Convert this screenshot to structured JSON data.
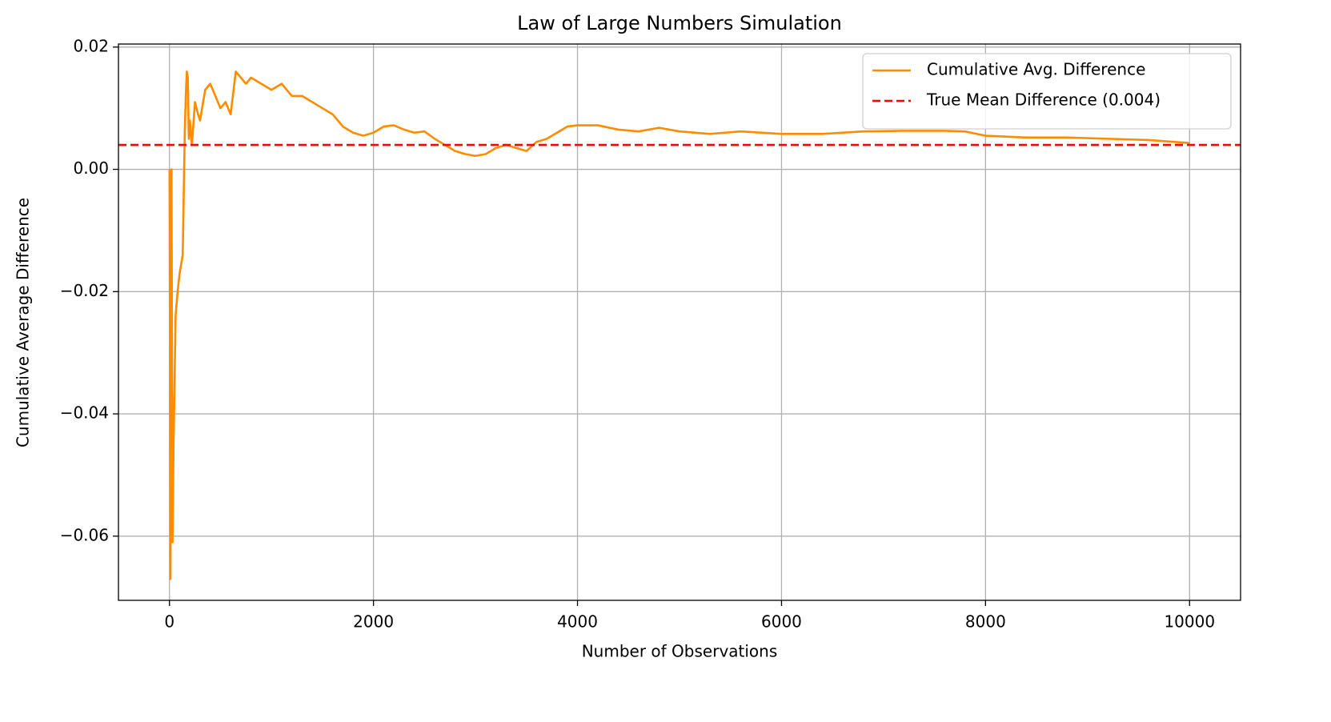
{
  "chart_data": {
    "type": "line",
    "title": "Law of Large Numbers Simulation",
    "xlabel": "Number of Observations",
    "ylabel": "Cumulative Average Difference",
    "x": [
      1,
      10,
      20,
      30,
      40,
      50,
      60,
      80,
      100,
      130,
      150,
      160,
      170,
      180,
      190,
      200,
      220,
      250,
      280,
      300,
      350,
      400,
      450,
      500,
      550,
      600,
      650,
      700,
      750,
      800,
      900,
      1000,
      1100,
      1200,
      1300,
      1400,
      1500,
      1600,
      1700,
      1800,
      1900,
      2000,
      2100,
      2200,
      2300,
      2400,
      2500,
      2600,
      2700,
      2800,
      2900,
      3000,
      3100,
      3200,
      3300,
      3400,
      3500,
      3600,
      3700,
      3800,
      3900,
      4000,
      4200,
      4400,
      4600,
      4800,
      5000,
      5300,
      5600,
      6000,
      6400,
      6800,
      7200,
      7600,
      7800,
      8000,
      8400,
      8800,
      9200,
      9600,
      10000
    ],
    "series": [
      {
        "name": "Cumulative Avg. Difference",
        "color": "#ff8c00",
        "values": [
          0,
          -0.067,
          0,
          -0.061,
          -0.045,
          -0.035,
          -0.024,
          -0.02,
          -0.017,
          -0.014,
          0.006,
          0.012,
          0.016,
          0.015,
          0.005,
          0.008,
          0.004,
          0.011,
          0.009,
          0.008,
          0.013,
          0.014,
          0.012,
          0.01,
          0.011,
          0.009,
          0.016,
          0.015,
          0.014,
          0.015,
          0.014,
          0.013,
          0.014,
          0.012,
          0.012,
          0.011,
          0.01,
          0.009,
          0.007,
          0.006,
          0.0055,
          0.006,
          0.007,
          0.0072,
          0.0065,
          0.006,
          0.0062,
          0.005,
          0.004,
          0.003,
          0.0025,
          0.0022,
          0.0025,
          0.0035,
          0.004,
          0.0035,
          0.003,
          0.0045,
          0.005,
          0.006,
          0.007,
          0.0072,
          0.0072,
          0.0065,
          0.0062,
          0.0068,
          0.0062,
          0.0058,
          0.0062,
          0.0058,
          0.0058,
          0.0062,
          0.0063,
          0.0063,
          0.0062,
          0.0055,
          0.0052,
          0.0052,
          0.005,
          0.0048,
          0.0043
        ]
      }
    ],
    "hline": {
      "name": "True Mean Difference (0.004)",
      "value": 0.004,
      "color": "#ff0000"
    },
    "xlim": [
      -500,
      10500
    ],
    "xticks": [
      0,
      2000,
      4000,
      6000,
      8000,
      10000
    ],
    "ylim": [
      -0.0705,
      0.0205
    ],
    "yticks": [
      {
        "value": -0.06,
        "label": "−0.06"
      },
      {
        "value": -0.04,
        "label": "−0.04"
      },
      {
        "value": -0.02,
        "label": "−0.02"
      },
      {
        "value": 0,
        "label": "0.00"
      },
      0.02
    ],
    "grid": true,
    "legend": "upper right"
  }
}
